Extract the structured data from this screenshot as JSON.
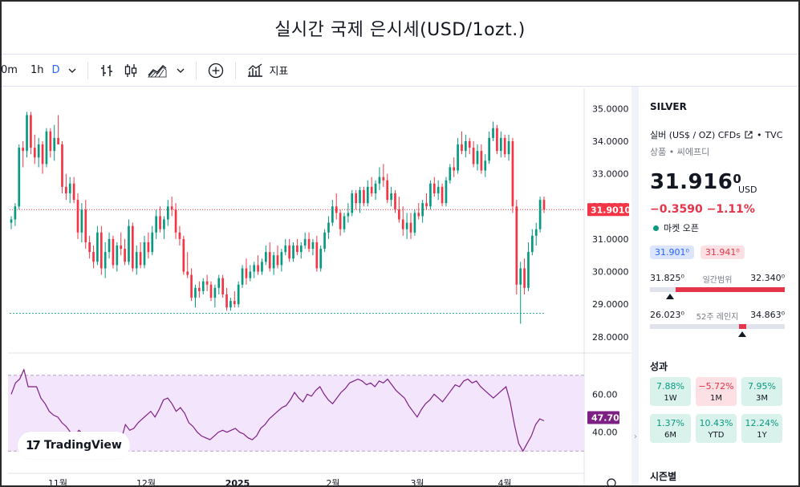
{
  "page_title": "실시간 국제 은시세(USD/1ozt.)",
  "toolbar": {
    "intervals": [
      "0m",
      "1h",
      "D"
    ],
    "active_interval": "D",
    "indicators_label": "지표"
  },
  "chart_data": {
    "type": "candlestick",
    "x_ticks": [
      "11월",
      "12월",
      "2025",
      "2월",
      "3월",
      "4월"
    ],
    "price_axis": [
      "35.0000",
      "34.0000",
      "33.0000",
      "32.0000",
      "31.0000",
      "30.0000",
      "29.0000",
      "28.0000"
    ],
    "ylim": [
      27.7,
      35.5
    ],
    "last_price_label": "31.9010",
    "last_price": 31.901,
    "low_line": 28.72,
    "rsi_axis": [
      "60.00",
      "40.00"
    ],
    "rsi_last_label": "47.70",
    "rsi_last": 47.7,
    "rsi_band": [
      30,
      70
    ],
    "series": [
      {
        "name": "price",
        "ohlc": [
          [
            31.5,
            31.7,
            31.3,
            31.6
          ],
          [
            31.6,
            32.1,
            31.4,
            32.0
          ],
          [
            32.0,
            33.9,
            31.9,
            33.8
          ],
          [
            33.8,
            34.0,
            33.2,
            33.7
          ],
          [
            33.7,
            34.9,
            33.5,
            34.8
          ],
          [
            34.8,
            34.9,
            33.6,
            33.8
          ],
          [
            33.8,
            34.2,
            33.3,
            33.5
          ],
          [
            33.5,
            34.1,
            33.2,
            33.9
          ],
          [
            33.9,
            34.0,
            33.0,
            33.3
          ],
          [
            33.3,
            34.4,
            33.2,
            34.3
          ],
          [
            34.3,
            34.4,
            33.5,
            33.7
          ],
          [
            33.7,
            34.5,
            33.4,
            34.1
          ],
          [
            34.1,
            34.8,
            33.9,
            33.9
          ],
          [
            33.9,
            34.0,
            32.4,
            32.6
          ],
          [
            32.6,
            33.0,
            32.2,
            32.4
          ],
          [
            32.4,
            32.9,
            32.1,
            32.7
          ],
          [
            32.7,
            32.9,
            32.1,
            32.2
          ],
          [
            32.2,
            32.4,
            31.0,
            31.2
          ],
          [
            31.2,
            32.1,
            30.9,
            31.9
          ],
          [
            31.9,
            32.2,
            30.7,
            30.9
          ],
          [
            30.9,
            31.1,
            30.4,
            30.6
          ],
          [
            30.6,
            30.8,
            30.1,
            30.3
          ],
          [
            30.3,
            31.4,
            30.2,
            31.2
          ],
          [
            31.2,
            31.4,
            29.9,
            30.1
          ],
          [
            30.1,
            30.9,
            29.8,
            30.6
          ],
          [
            30.6,
            31.2,
            30.4,
            31.0
          ],
          [
            31.0,
            31.1,
            30.1,
            30.2
          ],
          [
            30.2,
            30.9,
            30.0,
            30.8
          ],
          [
            30.8,
            31.2,
            30.5,
            30.7
          ],
          [
            30.7,
            31.0,
            30.2,
            30.3
          ],
          [
            30.3,
            31.6,
            30.2,
            31.4
          ],
          [
            31.4,
            31.5,
            30.0,
            30.1
          ],
          [
            30.1,
            30.8,
            29.9,
            30.6
          ],
          [
            30.6,
            30.9,
            30.1,
            30.2
          ],
          [
            30.2,
            31.1,
            30.1,
            30.9
          ],
          [
            30.9,
            31.2,
            30.4,
            30.6
          ],
          [
            30.6,
            31.4,
            30.5,
            31.2
          ],
          [
            31.2,
            31.9,
            31.0,
            31.7
          ],
          [
            31.7,
            32.0,
            31.2,
            31.3
          ],
          [
            31.3,
            31.7,
            31.0,
            31.6
          ],
          [
            31.6,
            32.2,
            31.4,
            32.0
          ],
          [
            32.0,
            32.3,
            31.7,
            31.9
          ],
          [
            31.9,
            32.1,
            31.0,
            31.2
          ],
          [
            31.2,
            31.4,
            30.8,
            31.0
          ],
          [
            31.0,
            31.1,
            29.9,
            30.0
          ],
          [
            30.0,
            30.6,
            29.8,
            29.9
          ],
          [
            29.9,
            30.1,
            29.1,
            29.2
          ],
          [
            29.2,
            29.6,
            28.9,
            29.5
          ],
          [
            29.5,
            29.7,
            29.2,
            29.4
          ],
          [
            29.4,
            29.8,
            29.3,
            29.7
          ],
          [
            29.7,
            29.9,
            29.4,
            29.6
          ],
          [
            29.6,
            29.7,
            29.1,
            29.2
          ],
          [
            29.2,
            29.6,
            28.9,
            29.5
          ],
          [
            29.5,
            29.9,
            29.3,
            29.8
          ],
          [
            29.8,
            29.9,
            29.2,
            29.3
          ],
          [
            29.3,
            29.5,
            28.8,
            28.9
          ],
          [
            28.9,
            29.2,
            28.8,
            29.1
          ],
          [
            29.1,
            29.4,
            28.9,
            29.0
          ],
          [
            29.0,
            29.7,
            28.9,
            29.6
          ],
          [
            29.6,
            30.2,
            29.5,
            30.1
          ],
          [
            30.1,
            30.4,
            29.6,
            29.8
          ],
          [
            29.8,
            30.2,
            29.7,
            30.0
          ],
          [
            30.0,
            30.3,
            29.8,
            30.2
          ],
          [
            30.2,
            30.5,
            29.9,
            30.0
          ],
          [
            30.0,
            30.4,
            29.9,
            30.3
          ],
          [
            30.3,
            30.8,
            30.2,
            30.6
          ],
          [
            30.6,
            30.9,
            30.0,
            30.1
          ],
          [
            30.1,
            30.6,
            29.9,
            30.5
          ],
          [
            30.5,
            30.8,
            30.1,
            30.2
          ],
          [
            30.2,
            30.7,
            30.0,
            30.6
          ],
          [
            30.6,
            31.0,
            30.5,
            30.8
          ],
          [
            30.8,
            31.0,
            30.3,
            30.4
          ],
          [
            30.4,
            30.9,
            30.3,
            30.8
          ],
          [
            30.8,
            31.0,
            30.5,
            30.6
          ],
          [
            30.6,
            30.9,
            30.4,
            30.8
          ],
          [
            30.8,
            31.2,
            30.7,
            31.0
          ],
          [
            31.0,
            31.2,
            30.6,
            30.7
          ],
          [
            30.7,
            31.0,
            30.5,
            30.9
          ],
          [
            30.9,
            31.1,
            30.0,
            30.1
          ],
          [
            30.1,
            30.8,
            30.0,
            30.7
          ],
          [
            30.7,
            31.3,
            30.6,
            31.2
          ],
          [
            31.2,
            31.7,
            31.0,
            31.5
          ],
          [
            31.5,
            32.2,
            31.4,
            32.0
          ],
          [
            32.0,
            32.4,
            31.6,
            31.8
          ],
          [
            31.8,
            31.9,
            31.1,
            31.3
          ],
          [
            31.3,
            31.8,
            31.2,
            31.7
          ],
          [
            31.7,
            32.1,
            31.5,
            31.8
          ],
          [
            31.8,
            32.5,
            31.7,
            32.4
          ],
          [
            32.4,
            32.5,
            31.9,
            32.1
          ],
          [
            32.1,
            32.6,
            31.8,
            32.5
          ],
          [
            32.5,
            32.6,
            32.0,
            32.1
          ],
          [
            32.1,
            32.8,
            32.0,
            32.6
          ],
          [
            32.6,
            32.9,
            32.3,
            32.4
          ],
          [
            32.4,
            32.8,
            32.2,
            32.7
          ],
          [
            32.7,
            33.2,
            32.5,
            32.9
          ],
          [
            32.9,
            33.3,
            32.6,
            32.8
          ],
          [
            32.8,
            33.0,
            32.1,
            32.2
          ],
          [
            32.2,
            32.6,
            32.0,
            32.4
          ],
          [
            32.4,
            32.5,
            31.8,
            31.9
          ],
          [
            31.9,
            32.3,
            31.5,
            31.6
          ],
          [
            31.6,
            32.0,
            31.1,
            31.3
          ],
          [
            31.3,
            31.8,
            31.0,
            31.5
          ],
          [
            31.5,
            31.8,
            31.0,
            31.2
          ],
          [
            31.2,
            31.9,
            31.1,
            31.8
          ],
          [
            31.8,
            32.1,
            31.6,
            31.7
          ],
          [
            31.7,
            32.2,
            31.5,
            32.1
          ],
          [
            32.1,
            32.4,
            31.9,
            32.0
          ],
          [
            32.0,
            32.8,
            31.9,
            32.7
          ],
          [
            32.7,
            32.9,
            32.3,
            32.4
          ],
          [
            32.4,
            32.8,
            32.2,
            32.6
          ],
          [
            32.6,
            32.7,
            32.0,
            32.1
          ],
          [
            32.1,
            32.9,
            32.0,
            32.8
          ],
          [
            32.8,
            33.3,
            32.7,
            33.2
          ],
          [
            33.2,
            33.5,
            32.9,
            33.1
          ],
          [
            33.1,
            34.1,
            33.0,
            33.9
          ],
          [
            33.9,
            34.3,
            33.6,
            33.7
          ],
          [
            33.7,
            34.2,
            33.5,
            34.0
          ],
          [
            34.0,
            34.1,
            33.6,
            33.8
          ],
          [
            33.8,
            34.0,
            33.2,
            33.3
          ],
          [
            33.3,
            33.9,
            33.1,
            33.7
          ],
          [
            33.7,
            33.9,
            33.0,
            33.1
          ],
          [
            33.1,
            33.6,
            32.9,
            33.4
          ],
          [
            33.4,
            34.3,
            33.3,
            34.1
          ],
          [
            34.1,
            34.6,
            34.0,
            34.4
          ],
          [
            34.4,
            34.5,
            33.6,
            33.7
          ],
          [
            33.7,
            34.3,
            33.5,
            34.1
          ],
          [
            34.1,
            34.2,
            33.5,
            33.6
          ],
          [
            33.6,
            34.2,
            33.4,
            34.0
          ],
          [
            34.0,
            34.1,
            31.8,
            32.0
          ],
          [
            32.0,
            32.2,
            29.3,
            29.6
          ],
          [
            29.6,
            30.3,
            28.4,
            30.1
          ],
          [
            30.1,
            30.4,
            29.3,
            29.5
          ],
          [
            29.5,
            30.9,
            29.4,
            30.6
          ],
          [
            30.6,
            31.3,
            30.5,
            31.1
          ],
          [
            31.1,
            31.5,
            30.8,
            31.3
          ],
          [
            31.3,
            32.3,
            31.2,
            32.2
          ],
          [
            32.2,
            32.3,
            31.8,
            31.9
          ]
        ]
      },
      {
        "name": "RSI",
        "values": [
          60,
          66,
          68,
          73,
          64,
          64,
          64,
          58,
          55,
          51,
          49,
          48,
          45,
          43,
          40,
          38,
          41,
          39,
          35,
          34,
          33,
          36,
          39,
          37,
          35,
          34,
          36,
          44,
          41,
          42,
          45,
          47,
          49,
          51,
          48,
          52,
          57,
          58,
          55,
          51,
          53,
          50,
          45,
          43,
          40,
          38,
          37,
          36,
          38,
          40,
          41,
          40,
          41,
          42,
          40,
          39,
          37,
          36,
          38,
          42,
          44,
          47,
          49,
          51,
          53,
          54,
          57,
          61,
          58,
          56,
          60,
          59,
          62,
          64,
          60,
          57,
          55,
          58,
          61,
          63,
          66,
          67,
          68,
          67,
          65,
          66,
          64,
          67,
          66,
          68,
          65,
          62,
          60,
          58,
          54,
          51,
          48,
          52,
          55,
          57,
          60,
          58,
          56,
          59,
          62,
          65,
          64,
          67,
          68,
          66,
          67,
          64,
          62,
          60,
          58,
          60,
          62,
          64,
          56,
          44,
          34,
          30,
          34,
          38,
          44,
          47,
          46
        ]
      }
    ]
  },
  "logo": {
    "text": "TradingView",
    "mark": "17"
  },
  "panel": {
    "symbol": "SILVER",
    "description": "실버 (US$ / OZ) CFDs",
    "exchange": "TVC",
    "category": "상품 • 씨에프디",
    "price_main": "31.916",
    "price_sup": "0",
    "currency": "USD",
    "change": "−0.3590  −1.11%",
    "market_status": "마켓 오픈",
    "bid": "31.901⁰",
    "ask": "31.941⁰",
    "day_low": "31.825⁰",
    "day_label": "일간범위",
    "day_high": "32.340⁰",
    "day_position": 0.15,
    "wk_low": "26.023⁰",
    "wk_label": "52주 레인지",
    "wk_high": "34.863⁰",
    "wk_position": 0.67,
    "perf_title": "성과",
    "performance": [
      {
        "value": "7.88%",
        "period": "1W",
        "dir": "pos"
      },
      {
        "value": "−5.72%",
        "period": "1M",
        "dir": "neg"
      },
      {
        "value": "7.95%",
        "period": "3M",
        "dir": "pos"
      },
      {
        "value": "1.37%",
        "period": "6M",
        "dir": "pos"
      },
      {
        "value": "10.43%",
        "period": "YTD",
        "dir": "pos"
      },
      {
        "value": "12.24%",
        "period": "1Y",
        "dir": "pos"
      }
    ],
    "season_title": "시즌별"
  },
  "colors": {
    "up": "#089981",
    "down": "#f23645",
    "rsi_line": "#7e1f86",
    "rsi_band": "#f3e5fb",
    "accent": "#2962ff"
  }
}
